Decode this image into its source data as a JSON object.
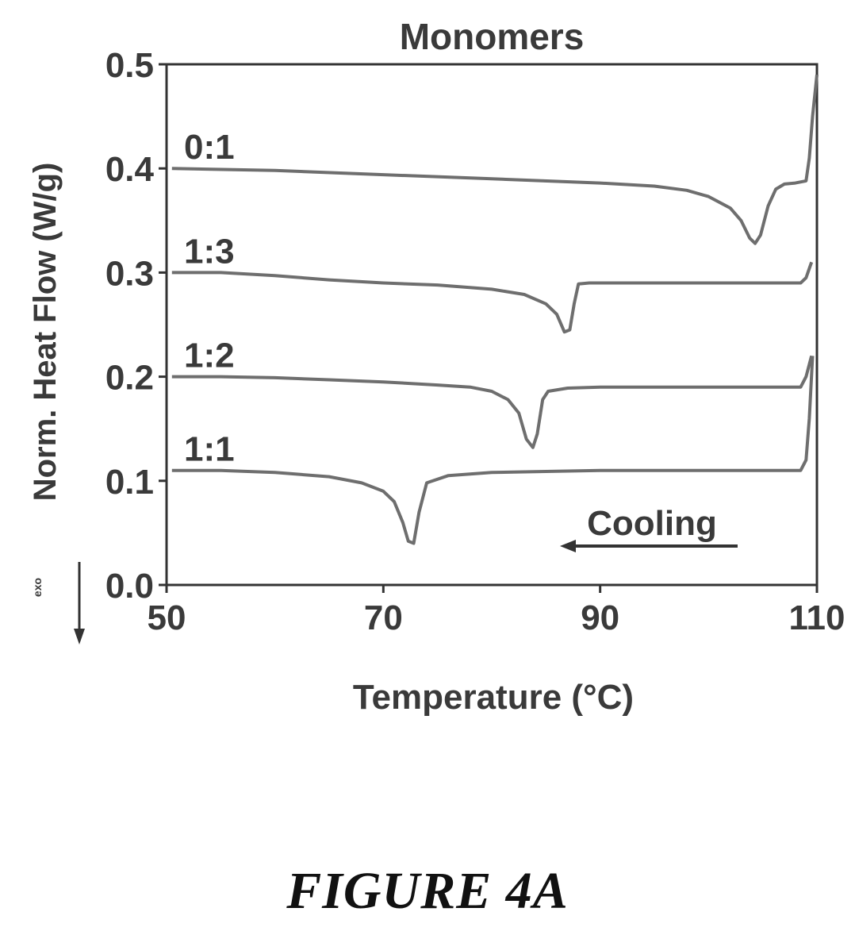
{
  "figure_label": "FIGURE 4A",
  "colors": {
    "line": "#6e6e6e",
    "axis": "#333333",
    "text": "#3a3a3a"
  },
  "chart_data": {
    "type": "line",
    "title": "Monomers",
    "xlabel": "Temperature (°C)",
    "ylabel": "Norm. Heat Flow (W/g)",
    "exo_label": "exo",
    "xlim": [
      50,
      110
    ],
    "ylim": [
      0.0,
      0.5
    ],
    "x_ticks": [
      50,
      70,
      90,
      110
    ],
    "y_ticks": [
      0.0,
      0.1,
      0.2,
      0.3,
      0.4,
      0.5
    ],
    "x_tick_labels": [
      "50",
      "70",
      "90",
      "110"
    ],
    "y_tick_labels": [
      "0.0",
      "0.1",
      "0.2",
      "0.3",
      "0.4",
      "0.5"
    ],
    "annotation": {
      "text": "Cooling",
      "arrow": "left"
    },
    "grid": false,
    "series": [
      {
        "name": "0:1",
        "x": [
          50.5,
          60,
          70,
          80,
          90,
          95,
          98,
          100,
          102,
          103,
          103.8,
          104.3,
          104.8,
          105.5,
          106.2,
          107,
          108,
          109,
          109.3,
          109.6,
          110
        ],
        "y": [
          0.4,
          0.398,
          0.394,
          0.39,
          0.386,
          0.383,
          0.379,
          0.373,
          0.362,
          0.35,
          0.333,
          0.328,
          0.336,
          0.364,
          0.38,
          0.385,
          0.386,
          0.388,
          0.41,
          0.45,
          0.49
        ]
      },
      {
        "name": "1:3",
        "x": [
          50.5,
          55,
          60,
          65,
          70,
          75,
          80,
          83,
          85,
          86,
          86.7,
          87.2,
          87.6,
          88,
          89,
          95,
          100,
          105,
          108.5,
          109,
          109.5
        ],
        "y": [
          0.3,
          0.3,
          0.297,
          0.293,
          0.29,
          0.288,
          0.284,
          0.279,
          0.27,
          0.26,
          0.243,
          0.245,
          0.27,
          0.289,
          0.29,
          0.29,
          0.29,
          0.29,
          0.29,
          0.295,
          0.31
        ]
      },
      {
        "name": "1:2",
        "x": [
          50.5,
          55,
          60,
          65,
          70,
          75,
          78,
          80,
          81.5,
          82.5,
          83.2,
          83.8,
          84.2,
          84.7,
          85.2,
          87,
          90,
          95,
          100,
          105,
          108.5,
          109,
          109.5
        ],
        "y": [
          0.2,
          0.2,
          0.199,
          0.197,
          0.195,
          0.192,
          0.19,
          0.186,
          0.178,
          0.165,
          0.14,
          0.132,
          0.145,
          0.178,
          0.186,
          0.189,
          0.19,
          0.19,
          0.19,
          0.19,
          0.19,
          0.2,
          0.22
        ]
      },
      {
        "name": "1:1",
        "x": [
          50.5,
          55,
          60,
          65,
          68,
          70,
          71,
          71.8,
          72.3,
          72.8,
          73.3,
          74,
          76,
          80,
          85,
          90,
          95,
          100,
          105,
          108.5,
          109,
          109.3,
          109.6
        ],
        "y": [
          0.11,
          0.11,
          0.108,
          0.104,
          0.098,
          0.09,
          0.08,
          0.06,
          0.042,
          0.04,
          0.07,
          0.098,
          0.105,
          0.108,
          0.109,
          0.11,
          0.11,
          0.11,
          0.11,
          0.11,
          0.12,
          0.16,
          0.22
        ]
      }
    ]
  }
}
